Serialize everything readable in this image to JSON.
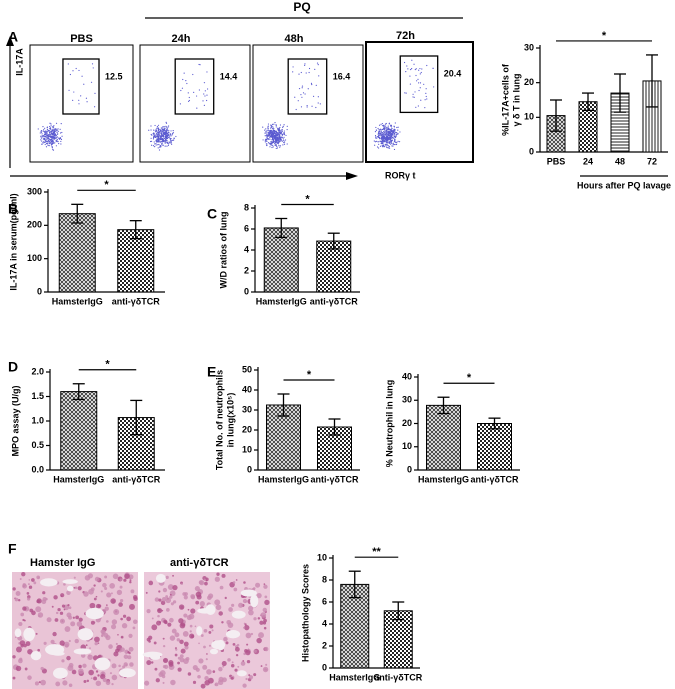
{
  "panel_labels": [
    "A",
    "B",
    "C",
    "D",
    "E",
    "F"
  ],
  "flow": {
    "group": "PQ",
    "y_axis": "IL-17A",
    "x_axis": "RORγ t",
    "panels": [
      {
        "label": "PBS",
        "value": 12.5
      },
      {
        "label": "24h",
        "value": 14.4
      },
      {
        "label": "48h",
        "value": 16.4
      },
      {
        "label": "72h",
        "value": 20.4
      }
    ]
  },
  "histology": {
    "labels": [
      "Hamster IgG",
      "anti-γδTCR"
    ]
  },
  "chart_data": [
    {
      "type": "bar",
      "categories": [
        "PBS",
        "24",
        "48",
        "72"
      ],
      "values": [
        10.5,
        14.5,
        17,
        20.5
      ],
      "errors": [
        4.5,
        2.5,
        5.5,
        7.5
      ],
      "patterns": [
        "crosshatch",
        "checker",
        "hlines",
        "vlines"
      ],
      "ylabel": [
        "%IL-17A+cells of",
        "γ δ T in lung"
      ],
      "xlabel": "Hours after PQ lavage",
      "significance": "*",
      "ylim": [
        0,
        30
      ],
      "yticks": [
        0,
        10,
        20,
        30
      ]
    },
    {
      "type": "bar",
      "categories": [
        "HamsterIgG",
        "anti-γδTCR"
      ],
      "values": [
        235,
        187
      ],
      "errors": [
        28,
        27
      ],
      "patterns": [
        "crosshatch",
        "checker"
      ],
      "ylabel": "IL-17A in serum(pg/ml)",
      "significance": "*",
      "ylim": [
        0,
        300
      ],
      "yticks": [
        0,
        100,
        200,
        300
      ]
    },
    {
      "type": "bar",
      "categories": [
        "HamsterIgG",
        "anti-γδTCR"
      ],
      "values": [
        6.1,
        4.85
      ],
      "errors": [
        0.9,
        0.75
      ],
      "patterns": [
        "crosshatch",
        "checker"
      ],
      "ylabel": "W/D ratios of lung",
      "significance": "*",
      "ylim": [
        0,
        8
      ],
      "yticks": [
        0,
        2,
        4,
        6,
        8
      ]
    },
    {
      "type": "bar",
      "categories": [
        "HamsterIgG",
        "anti-γδTCR"
      ],
      "values": [
        1.6,
        1.07
      ],
      "errors": [
        0.16,
        0.35
      ],
      "patterns": [
        "crosshatch",
        "checker"
      ],
      "ylabel": "MPO  assay (U/g)",
      "significance": "*",
      "ylim": [
        0,
        2
      ],
      "yticks": [
        {
          "value": 0,
          "label": "0.0"
        },
        0.5,
        {
          "value": 1,
          "label": "1.0"
        },
        1.5,
        {
          "value": 2,
          "label": "2.0"
        }
      ]
    },
    {
      "type": "bar",
      "categories": [
        "HamsterIgG",
        "anti-γδTCR"
      ],
      "values": [
        32.5,
        21.5
      ],
      "errors": [
        5.5,
        4
      ],
      "patterns": [
        "crosshatch",
        "checker"
      ],
      "ylabel": [
        "Total No. of neutrophils",
        "in lung(x10⁵)"
      ],
      "significance": "*",
      "ylim": [
        0,
        50
      ],
      "yticks": [
        0,
        10,
        20,
        30,
        40,
        50
      ]
    },
    {
      "type": "bar",
      "categories": [
        "HamsterIgG",
        "anti-γδTCR"
      ],
      "values": [
        27.8,
        20
      ],
      "errors": [
        3.5,
        2.3
      ],
      "patterns": [
        "crosshatch",
        "checker"
      ],
      "ylabel": "% Neutrophil in lung",
      "significance": "*",
      "ylim": [
        0,
        40
      ],
      "yticks": [
        0,
        10,
        20,
        30,
        40
      ]
    },
    {
      "type": "bar",
      "categories": [
        "HamsterIgG",
        "anti-γδTCR"
      ],
      "values": [
        7.6,
        5.2
      ],
      "errors": [
        1.2,
        0.8
      ],
      "patterns": [
        "crosshatch",
        "checker"
      ],
      "ylabel": "Histopathology Scores",
      "significance": "**",
      "ylim": [
        0,
        10
      ],
      "yticks": [
        0,
        2,
        4,
        6,
        8,
        10
      ]
    }
  ]
}
